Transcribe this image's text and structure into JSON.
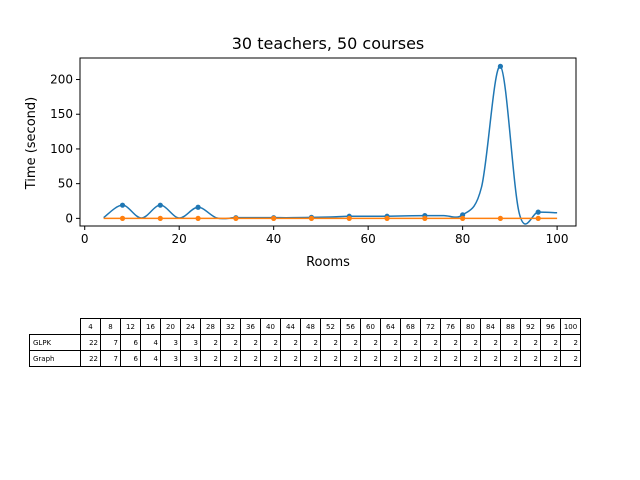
{
  "chart_data": {
    "type": "line",
    "title": "30 teachers, 50 courses",
    "xlabel": "Rooms",
    "ylabel": "Time (second)",
    "xlim": [
      -1,
      104
    ],
    "ylim": [
      -11,
      231
    ],
    "xticks": [
      0,
      20,
      40,
      60,
      80,
      100
    ],
    "yticks": [
      0,
      50,
      100,
      150,
      200
    ],
    "grid": false,
    "x": [
      4,
      8,
      12,
      16,
      20,
      24,
      28,
      32,
      36,
      40,
      44,
      48,
      52,
      56,
      60,
      64,
      68,
      72,
      76,
      80,
      84,
      88,
      92,
      96,
      100
    ],
    "series": [
      {
        "name": "GLPK",
        "color": "#1f77b4",
        "values": [
          1,
          19,
          0.5,
          19,
          0.5,
          16,
          0.5,
          1,
          1,
          1,
          1,
          1.5,
          2,
          3,
          3,
          3,
          3.5,
          4,
          4,
          5,
          45,
          219,
          7,
          9,
          8
        ]
      },
      {
        "name": "Graph",
        "color": "#ff7f0e",
        "values": [
          0,
          0,
          0,
          0,
          0,
          0,
          0,
          0,
          0,
          0,
          0,
          0,
          0,
          0,
          0,
          0,
          0,
          0,
          0,
          0,
          0,
          0,
          0,
          0,
          0
        ]
      }
    ]
  },
  "table": {
    "columns": [
      "4",
      "8",
      "12",
      "16",
      "20",
      "24",
      "28",
      "32",
      "36",
      "40",
      "44",
      "48",
      "52",
      "56",
      "60",
      "64",
      "68",
      "72",
      "76",
      "80",
      "84",
      "88",
      "92",
      "96",
      "100"
    ],
    "rows": [
      {
        "label": "GLPK",
        "cells": [
          "22",
          "7",
          "6",
          "4",
          "3",
          "3",
          "2",
          "2",
          "2",
          "2",
          "2",
          "2",
          "2",
          "2",
          "2",
          "2",
          "2",
          "2",
          "2",
          "2",
          "2",
          "2",
          "2",
          "2",
          "2"
        ]
      },
      {
        "label": "Graph",
        "cells": [
          "22",
          "7",
          "6",
          "4",
          "3",
          "3",
          "2",
          "2",
          "2",
          "2",
          "2",
          "2",
          "2",
          "2",
          "2",
          "2",
          "2",
          "2",
          "2",
          "2",
          "2",
          "2",
          "2",
          "2",
          "2"
        ]
      }
    ]
  }
}
